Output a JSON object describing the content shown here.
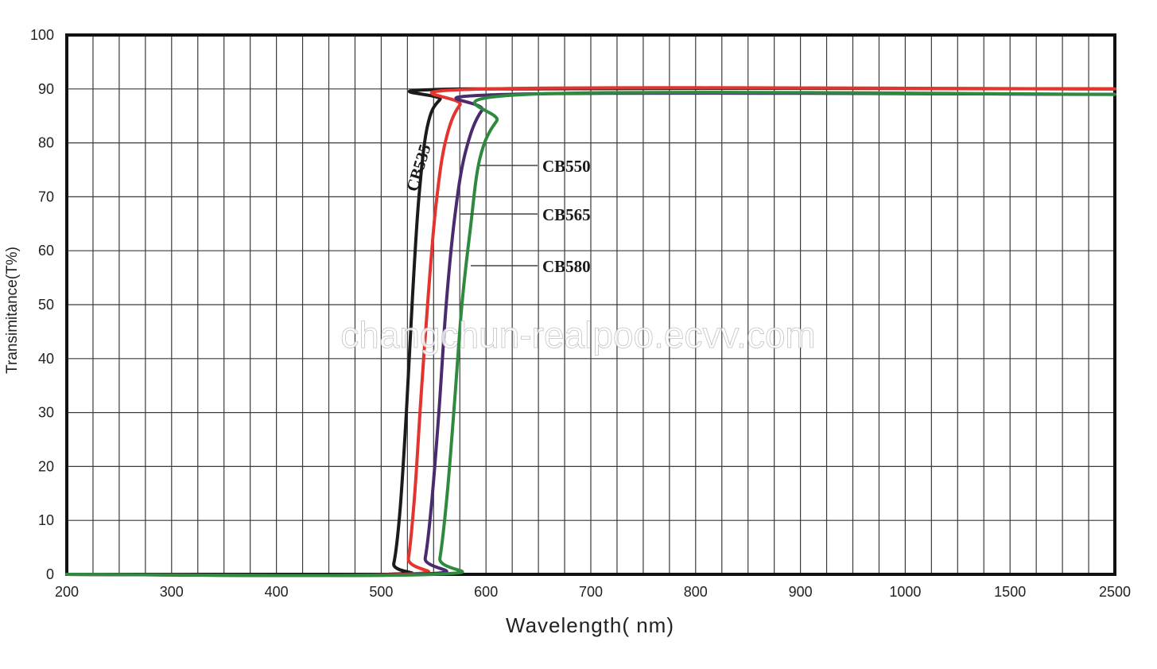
{
  "watermark": "changchun-realpoo.ecvv.com",
  "chart_data": {
    "type": "line",
    "title": "",
    "xlabel": "Wavelength( nm)",
    "ylabel": "Transimitance(T%)",
    "x_tick_labels": [
      "200",
      "300",
      "400",
      "500",
      "600",
      "700",
      "800",
      "900",
      "1000",
      "1500",
      "2500"
    ],
    "y_tick_labels": [
      "0",
      "10",
      "20",
      "30",
      "40",
      "50",
      "60",
      "70",
      "80",
      "90",
      "100"
    ],
    "ylim": [
      0,
      100
    ],
    "grid": true,
    "x_scale": "piecewise (200–1000 linear, then 1500, 2500)",
    "series": [
      {
        "name": "CB535",
        "color": "#1b1b1b",
        "points": [
          [
            200,
            0
          ],
          [
            505,
            0
          ],
          [
            512,
            2
          ],
          [
            518,
            12
          ],
          [
            524,
            30
          ],
          [
            530,
            52
          ],
          [
            536,
            70
          ],
          [
            544,
            83
          ],
          [
            556,
            88
          ],
          [
            580,
            90
          ],
          [
            2500,
            90
          ]
        ]
      },
      {
        "name": "",
        "color": "#e3342f",
        "points": [
          [
            200,
            0
          ],
          [
            520,
            0
          ],
          [
            526,
            3
          ],
          [
            532,
            15
          ],
          [
            538,
            33
          ],
          [
            545,
            52
          ],
          [
            552,
            68
          ],
          [
            561,
            80
          ],
          [
            575,
            87
          ],
          [
            600,
            90
          ],
          [
            2500,
            90
          ]
        ]
      },
      {
        "name": "CB565",
        "color": "#4a2c6e",
        "points": [
          [
            200,
            0
          ],
          [
            536,
            0
          ],
          [
            542,
            3
          ],
          [
            548,
            13
          ],
          [
            555,
            30
          ],
          [
            562,
            50
          ],
          [
            570,
            66
          ],
          [
            580,
            78
          ],
          [
            596,
            86
          ],
          [
            622,
            89
          ],
          [
            2500,
            89
          ]
        ]
      },
      {
        "name": "CB580",
        "color": "#2e8b3e",
        "points": [
          [
            200,
            0
          ],
          [
            550,
            0
          ],
          [
            556,
            3
          ],
          [
            563,
            15
          ],
          [
            570,
            32
          ],
          [
            577,
            50
          ],
          [
            585,
            64
          ],
          [
            594,
            77
          ],
          [
            610,
            84
          ],
          [
            640,
            89
          ],
          [
            2500,
            89
          ]
        ]
      }
    ],
    "annotations": [
      {
        "text": "CB535",
        "series": "CB535"
      },
      {
        "text": "CB550",
        "series": "CB550"
      },
      {
        "text": "CB565",
        "series": "CB565"
      },
      {
        "text": "CB580",
        "series": "CB580"
      }
    ],
    "legend": "none (inline annotations)"
  }
}
